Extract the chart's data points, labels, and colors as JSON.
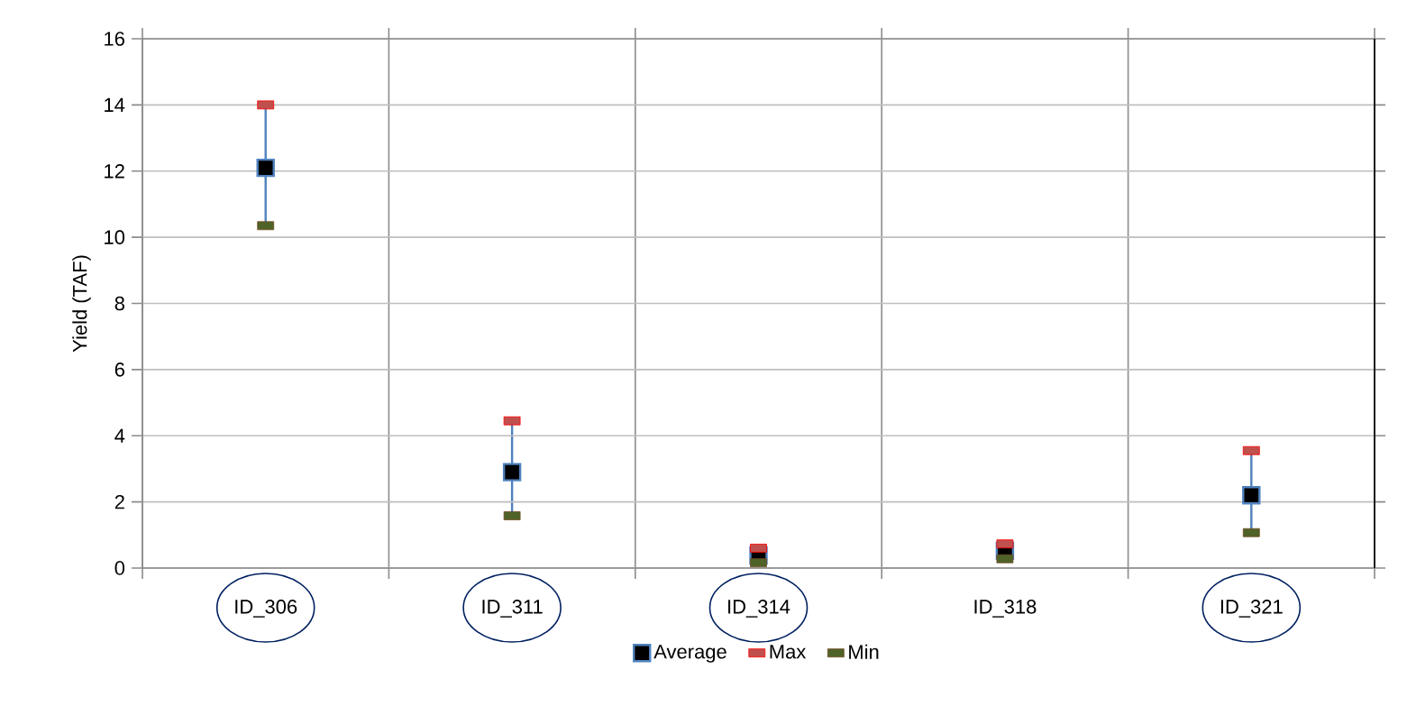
{
  "chart_data": {
    "type": "scatter",
    "ylabel": "Yield (TAF)",
    "categories": [
      "ID_306",
      "ID_311",
      "ID_314",
      "ID_318",
      "ID_321"
    ],
    "series": [
      {
        "name": "Average",
        "color": "#4f81bd",
        "marker": "square",
        "values": [
          12.1,
          2.9,
          0.38,
          0.52,
          2.2
        ]
      },
      {
        "name": "Max",
        "color": "#c0504d",
        "values": [
          14.0,
          4.45,
          0.6,
          0.73,
          3.55
        ]
      },
      {
        "name": "Min",
        "color": "#4f6228",
        "values": [
          10.35,
          1.58,
          0.16,
          0.28,
          1.07
        ]
      }
    ],
    "ylim": [
      0,
      16
    ],
    "yticks": [
      0,
      2,
      4,
      6,
      8,
      10,
      12,
      14,
      16
    ],
    "grid": true,
    "legend": "bottom"
  }
}
